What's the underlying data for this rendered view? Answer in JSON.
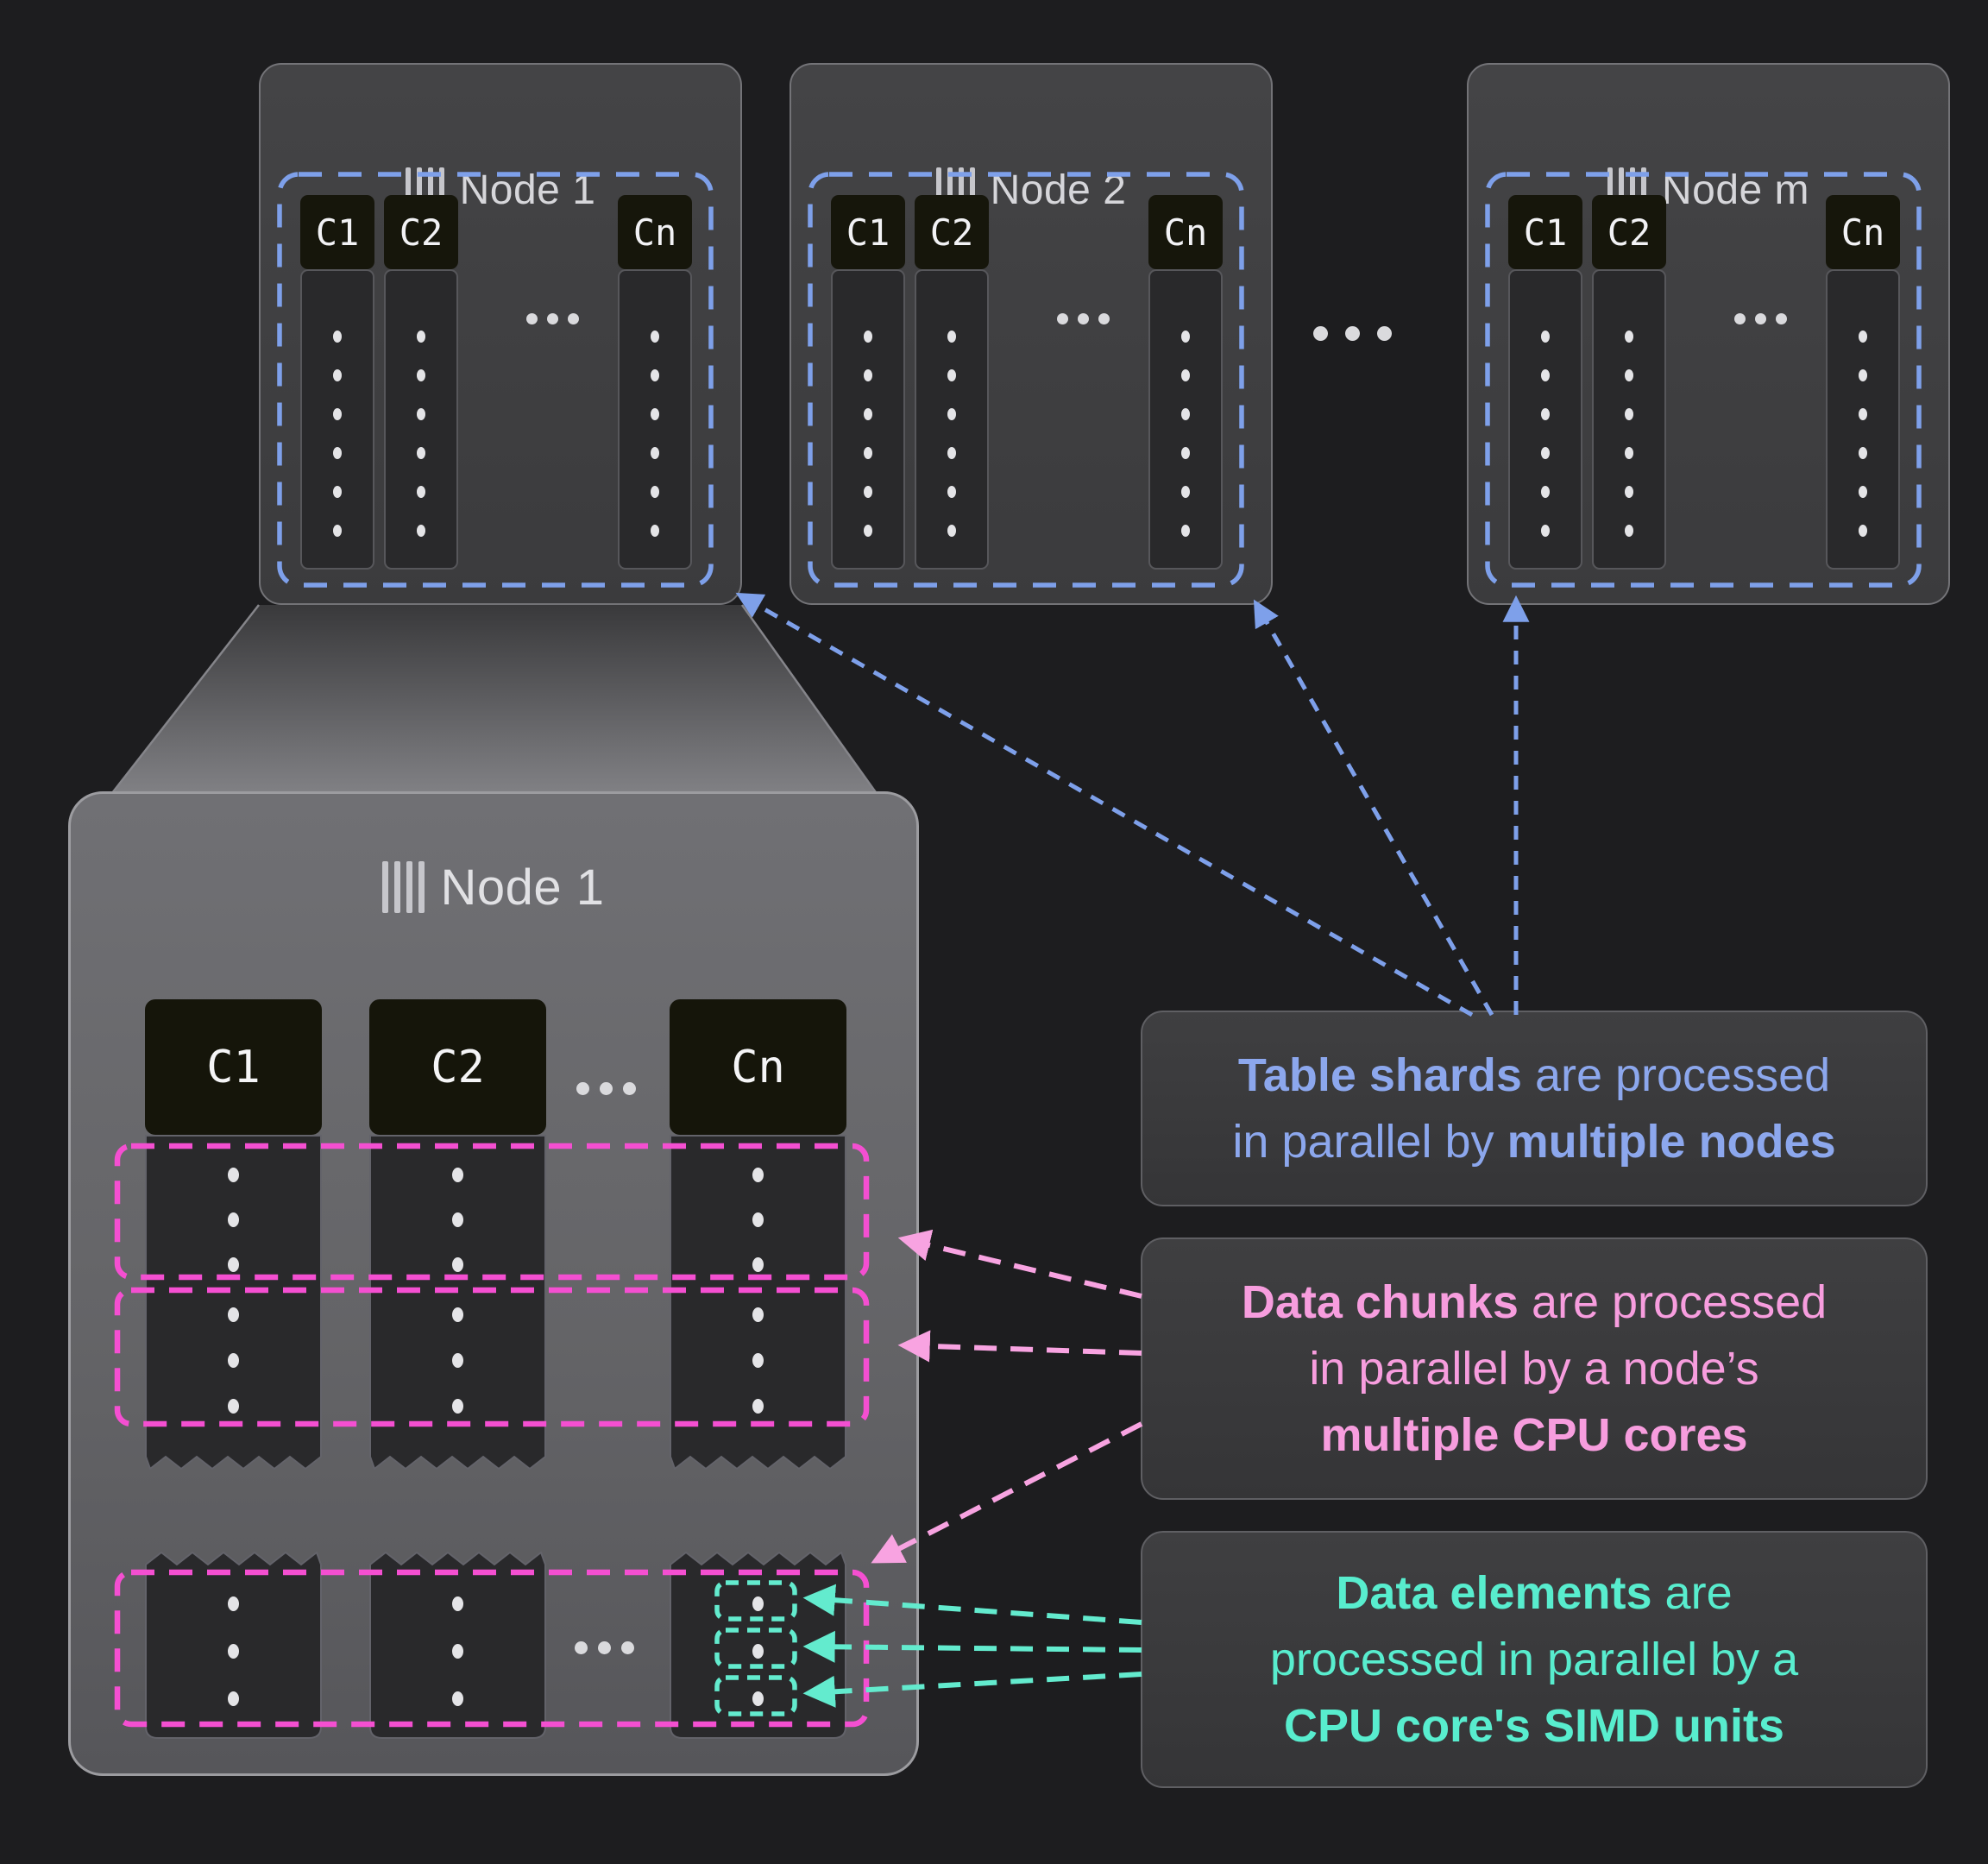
{
  "palette": {
    "background": "#1D1D1F",
    "blue": "#7EA0EA",
    "blue_text": "#8CA7ED",
    "pink": "#F44FD1",
    "pink_arrow": "#F8A3E1",
    "pink_text": "#F79DDE",
    "teal": "#63EBCE",
    "teal_text": "#58EDCE"
  },
  "icons": {
    "node_icon": "column-bars-icon",
    "ellipsis_icon": "ellipsis-icon"
  },
  "top_nodes": [
    {
      "label": "Node 1",
      "columns": [
        "C1",
        "C2",
        "Cn"
      ]
    },
    {
      "label": "Node 2",
      "columns": [
        "C1",
        "C2",
        "Cn"
      ]
    },
    {
      "label": "Node m",
      "columns": [
        "C1",
        "C2",
        "Cn"
      ]
    }
  ],
  "zoom_node": {
    "label": "Node 1",
    "columns": [
      "C1",
      "C2",
      "Cn"
    ]
  },
  "annotations": [
    {
      "id": "table-shards",
      "color": "blue",
      "lines": [
        [
          {
            "t": "Table shards",
            "b": true
          },
          {
            "t": " are processed"
          }
        ],
        [
          {
            "t": "in parallel by "
          },
          {
            "t": "multiple nodes",
            "b": true
          }
        ]
      ]
    },
    {
      "id": "data-chunks",
      "color": "pink",
      "lines": [
        [
          {
            "t": "Data chunks",
            "b": true
          },
          {
            "t": " are processed"
          }
        ],
        [
          {
            "t": "in parallel by a node’s"
          }
        ],
        [
          {
            "t": "multiple CPU cores",
            "b": true
          }
        ]
      ]
    },
    {
      "id": "data-elements",
      "color": "teal",
      "lines": [
        [
          {
            "t": "Data elements",
            "b": true
          },
          {
            "t": " are"
          }
        ],
        [
          {
            "t": "processed in parallel by a"
          }
        ],
        [
          {
            "t": "CPU core's SIMD units",
            "b": true
          }
        ]
      ]
    }
  ]
}
